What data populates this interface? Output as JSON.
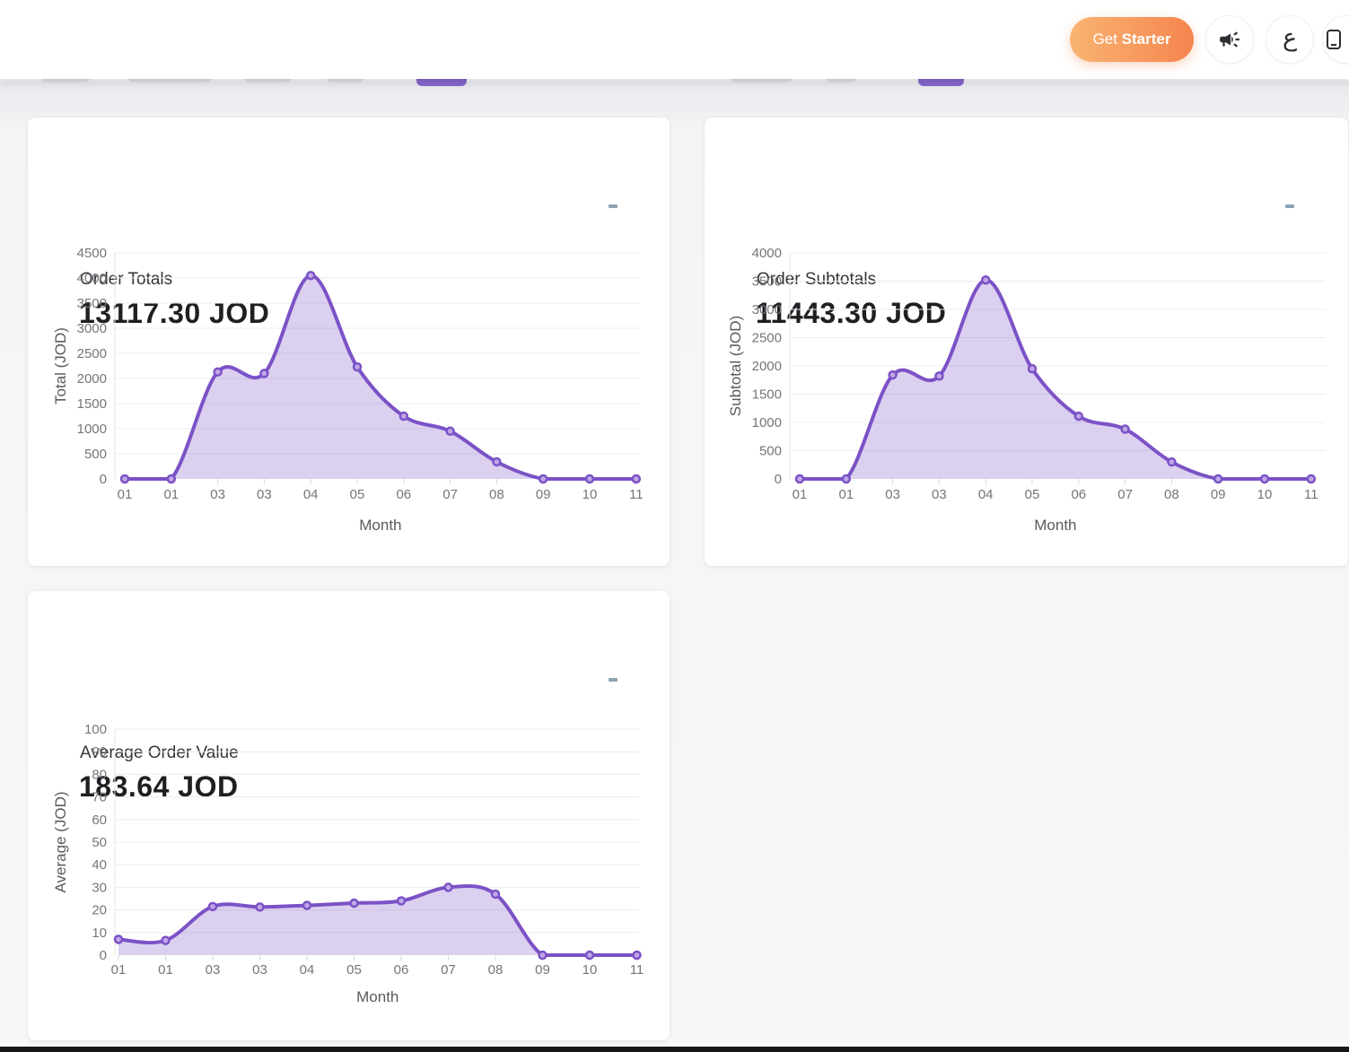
{
  "header": {
    "cta_prefix": "Get",
    "cta_suffix": "Starter",
    "language_label": "ع"
  },
  "cards": [
    {
      "title": "Order Totals",
      "value": "13117.30 JOD"
    },
    {
      "title": "Order Subtotals",
      "value": "11443.30 JOD"
    },
    {
      "title": "Average Order Value",
      "value": "183.64 JOD"
    }
  ],
  "chart_data": [
    {
      "type": "area",
      "title": "Order Totals",
      "total_label": "13117.30 JOD",
      "categories": [
        "01",
        "01",
        "03",
        "03",
        "04",
        "05",
        "06",
        "07",
        "08",
        "09",
        "10",
        "11"
      ],
      "values": [
        0,
        0,
        2130,
        2100,
        4050,
        2230,
        1250,
        950,
        340,
        0,
        0,
        0
      ],
      "xlabel": "Month",
      "ylabel": "Total (JOD)",
      "ylim": [
        0,
        4500
      ],
      "ytick_step": 500,
      "grid": true,
      "legend": "none",
      "line_color": "#7b52c6",
      "fill_color": "rgba(123,82,198,0.27)",
      "marker_fill": "#c0a8e6"
    },
    {
      "type": "area",
      "title": "Order Subtotals",
      "total_label": "11443.30 JOD",
      "categories": [
        "01",
        "01",
        "03",
        "03",
        "04",
        "05",
        "06",
        "07",
        "08",
        "09",
        "10",
        "11"
      ],
      "values": [
        0,
        0,
        1840,
        1820,
        3520,
        1950,
        1110,
        880,
        300,
        0,
        0,
        0
      ],
      "xlabel": "Month",
      "ylabel": "Subtotal (JOD)",
      "ylim": [
        0,
        4000
      ],
      "ytick_step": 500,
      "grid": true,
      "legend": "none",
      "line_color": "#7b52c6",
      "fill_color": "rgba(123,82,198,0.27)",
      "marker_fill": "#c0a8e6"
    },
    {
      "type": "area",
      "title": "Average Order Value",
      "total_label": "183.64 JOD",
      "categories": [
        "01",
        "01",
        "03",
        "03",
        "04",
        "05",
        "06",
        "07",
        "08",
        "09",
        "10",
        "11"
      ],
      "values": [
        7,
        6.5,
        21.5,
        21.3,
        22,
        23,
        24,
        30,
        27,
        0,
        0,
        0
      ],
      "xlabel": "Month",
      "ylabel": "Average (JOD)",
      "ylim": [
        0,
        100
      ],
      "ytick_step": 10,
      "grid": true,
      "legend": "none",
      "line_color": "#7b52c6",
      "fill_color": "rgba(123,82,198,0.27)",
      "marker_fill": "#c0a8e6"
    }
  ],
  "colors": {
    "accent_purple": "#7b52c6",
    "cta_gradient_start": "#f9b472",
    "cta_gradient_end": "#f5854e",
    "page_background": "#f7f7f9",
    "card_background": "#ffffff",
    "bottom_bar": "#161616"
  }
}
